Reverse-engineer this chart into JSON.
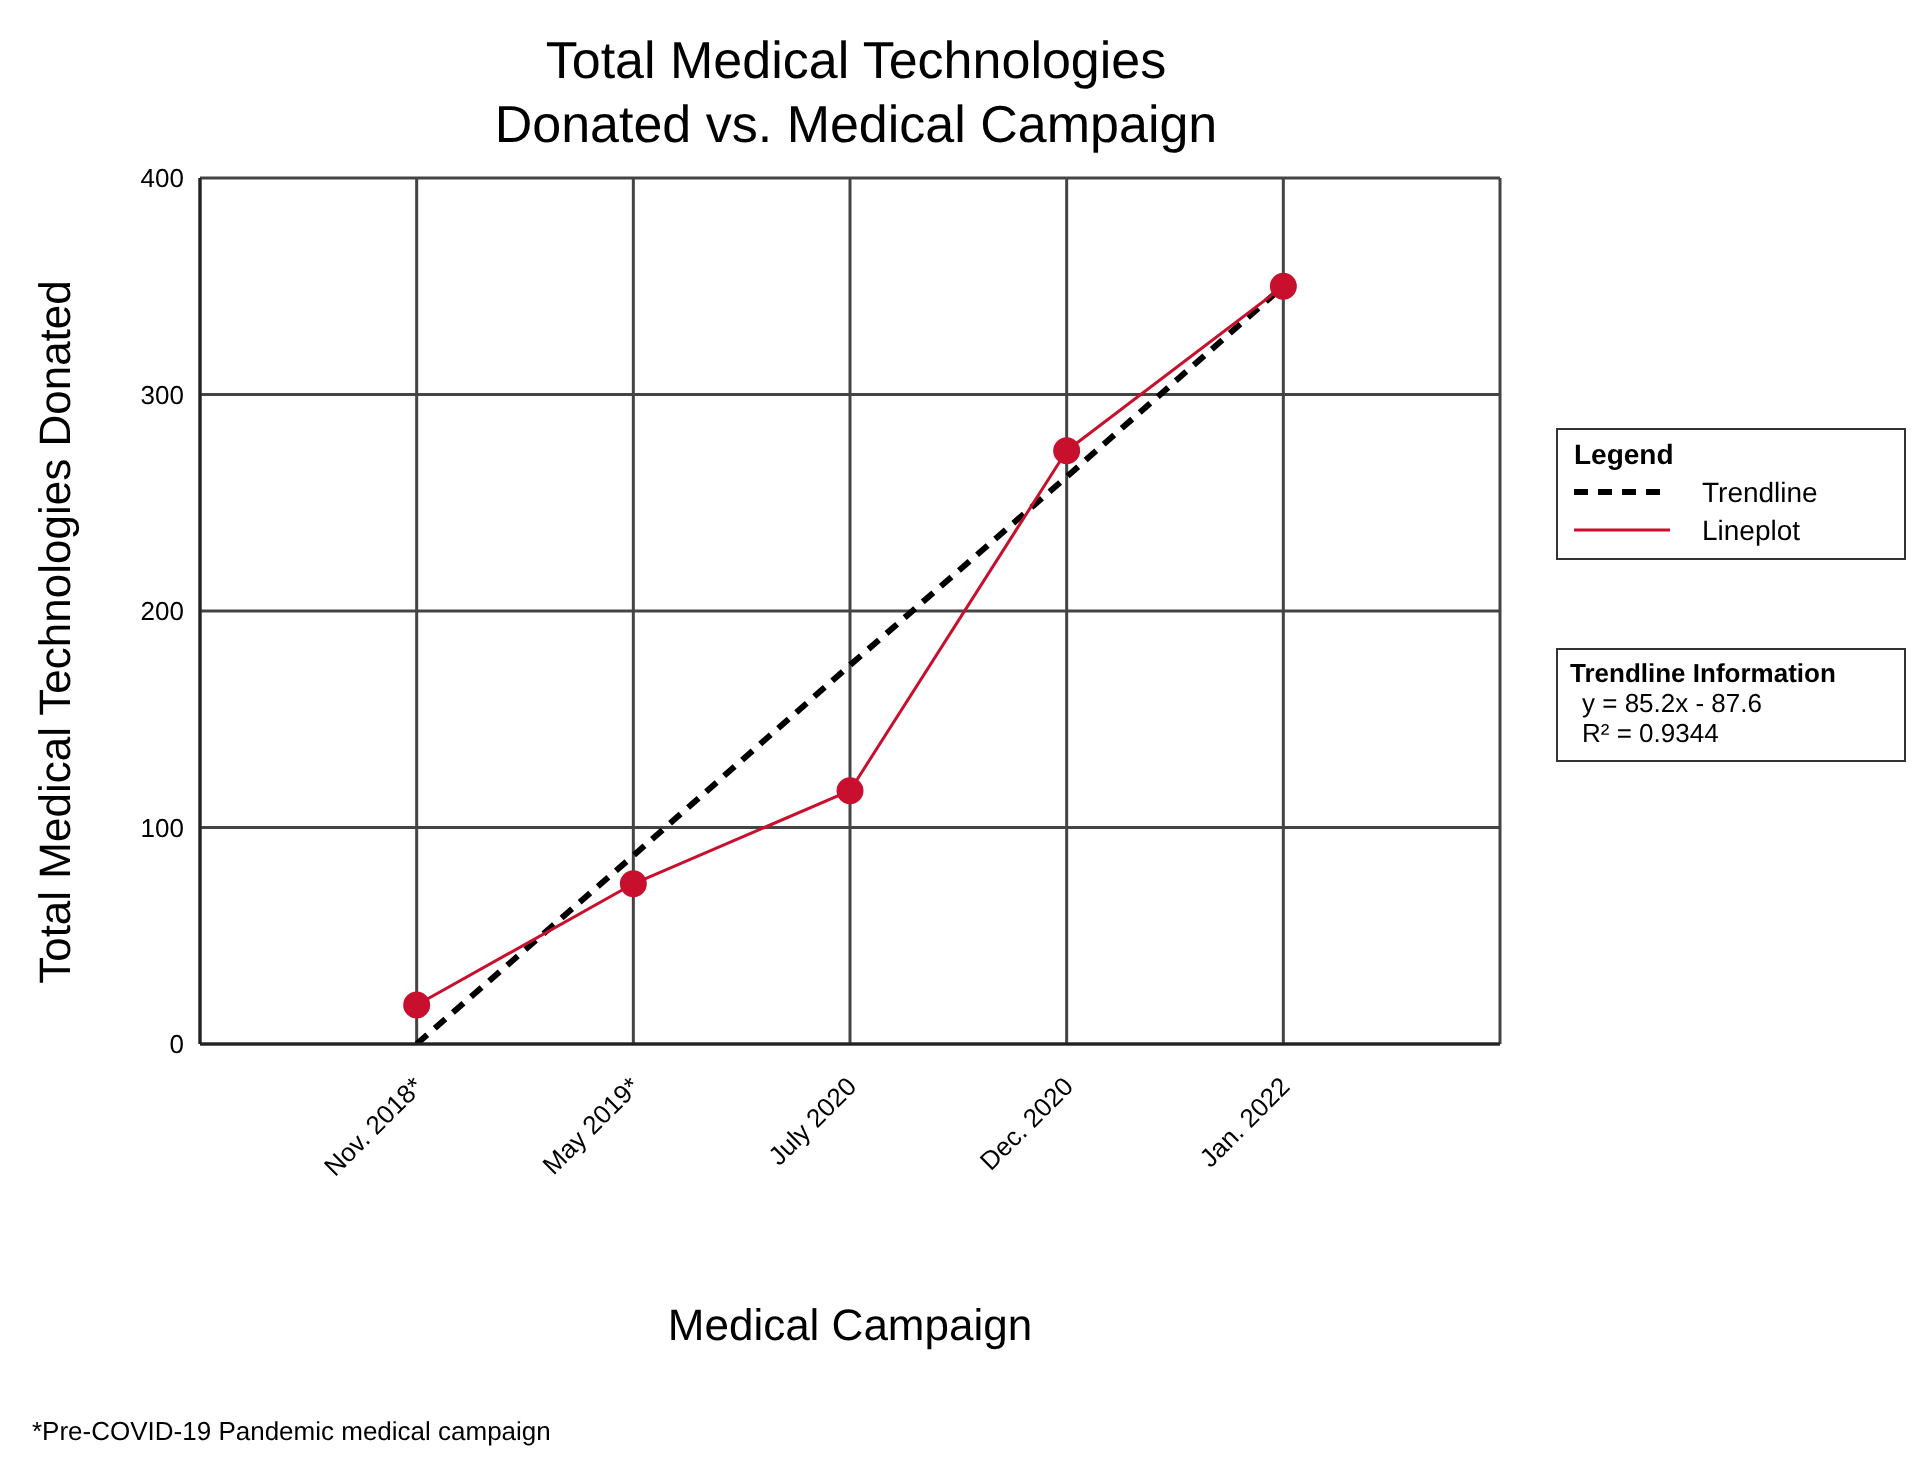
{
  "chart_data": {
    "type": "line",
    "title": "Total Medical Technologies\nDonated vs. Medical Campaign",
    "xlabel": "Medical Campaign",
    "ylabel": "Total Medical Technologies Donated",
    "legend_title": "Legend",
    "categories": [
      null,
      "Nov. 2018*",
      "May 2019*",
      "July 2020",
      "Dec. 2020",
      "Jan. 2022",
      null
    ],
    "ylim": [
      0,
      400
    ],
    "yticks": [
      0,
      100,
      200,
      300,
      400
    ],
    "grid": true,
    "legend": "right",
    "series": [
      {
        "name": "Trendline",
        "color": "#000000",
        "line_style": "dashed",
        "marker": "none",
        "values": [
          null,
          0,
          87,
          175,
          262,
          350,
          null
        ]
      },
      {
        "name": "Lineplot",
        "color": "#c8102e",
        "line_style": "solid",
        "marker": "circle",
        "values": [
          null,
          18,
          74,
          117,
          274,
          350,
          null
        ]
      }
    ],
    "annotations": [
      "Trendline Information",
      "y = 85.2x - 87.6",
      "R² = 0.9344",
      "*Pre-COVID-19 Pandemic medical campaign"
    ]
  }
}
